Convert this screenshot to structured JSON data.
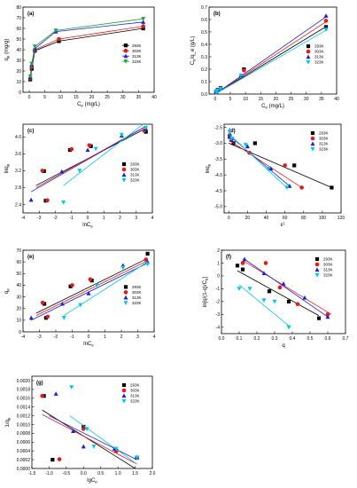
{
  "chart_data": [
    {
      "id": "a",
      "type": "line",
      "panel_label": "(a)",
      "xlabel": "C_e (mg/L)",
      "ylabel": "q_e (mg/g)",
      "xlim": [
        -2,
        40
      ],
      "ylim": [
        0,
        80
      ],
      "xticks": [
        0,
        5,
        10,
        15,
        20,
        25,
        30,
        35,
        40
      ],
      "yticks": [
        0,
        10,
        20,
        30,
        40,
        50,
        60,
        70,
        80
      ],
      "legend_position": "center-right",
      "series": [
        {
          "name": "293K",
          "color": "#000000",
          "marker": "square",
          "x": [
            0.3,
            0.8,
            1.8,
            9.5,
            36.5
          ],
          "y": [
            12,
            22,
            39,
            48,
            60
          ]
        },
        {
          "name": "303K",
          "color": "#e41a1c",
          "marker": "circle",
          "x": [
            0.3,
            0.8,
            1.8,
            9.5,
            36.5
          ],
          "y": [
            13,
            24,
            40,
            50,
            62
          ]
        },
        {
          "name": "313K",
          "color": "#1f1fd6",
          "marker": "triangle",
          "x": [
            0.3,
            0.8,
            1.8,
            8.5,
            36.5
          ],
          "y": [
            14,
            26,
            41,
            57,
            66
          ]
        },
        {
          "name": "323K",
          "color": "#1fa33a",
          "marker": "triangle-down",
          "x": [
            0.3,
            0.8,
            1.8,
            8.5,
            36.5
          ],
          "y": [
            15,
            27,
            43,
            58,
            69
          ]
        }
      ]
    },
    {
      "id": "b",
      "type": "scatter",
      "panel_label": "(b)",
      "xlabel": "C_e (mg/L)",
      "ylabel": "C_e/q_e (g/L)",
      "xlim": [
        -2,
        40
      ],
      "ylim": [
        0,
        0.7
      ],
      "xticks": [
        0,
        5,
        10,
        15,
        20,
        25,
        30,
        35,
        40
      ],
      "yticks": [
        0.0,
        0.1,
        0.2,
        0.3,
        0.4,
        0.5,
        0.6,
        0.7
      ],
      "legend_position": "center-right",
      "series": [
        {
          "name": "293K",
          "color": "#000000",
          "marker": "square",
          "x": [
            0.3,
            0.8,
            1.8,
            9.5,
            36.5
          ],
          "y": [
            0.02,
            0.035,
            0.05,
            0.2,
            0.54
          ],
          "fit": [
            [
              0,
              0.0
            ],
            [
              37,
              0.55
            ]
          ]
        },
        {
          "name": "303K",
          "color": "#e41a1c",
          "marker": "circle",
          "x": [
            0.3,
            0.8,
            1.8,
            9.5,
            36.5
          ],
          "y": [
            0.02,
            0.033,
            0.048,
            0.19,
            0.59
          ],
          "fit": [
            [
              0,
              0.0
            ],
            [
              37,
              0.59
            ]
          ]
        },
        {
          "name": "313K",
          "color": "#1f1fd6",
          "marker": "triangle",
          "x": [
            0.3,
            0.8,
            1.8,
            8.5,
            36.5
          ],
          "y": [
            0.02,
            0.031,
            0.045,
            0.15,
            0.63
          ],
          "fit": [
            [
              0,
              0.0
            ],
            [
              37,
              0.63
            ]
          ]
        },
        {
          "name": "323K",
          "color": "#00c8e6",
          "marker": "triangle-down",
          "x": [
            0.3,
            0.8,
            1.8,
            8.5,
            36.5
          ],
          "y": [
            0.018,
            0.03,
            0.043,
            0.15,
            0.52
          ],
          "fit": [
            [
              0,
              0.0
            ],
            [
              37,
              0.52
            ]
          ]
        }
      ]
    },
    {
      "id": "c",
      "type": "scatter",
      "panel_label": "(c)",
      "xlabel": "lnC_e",
      "ylabel": "lnq_e",
      "xlim": [
        -4,
        4
      ],
      "ylim": [
        2.2,
        4.3
      ],
      "xticks": [
        -4,
        -3,
        -2,
        -1,
        0,
        1,
        2,
        3,
        4
      ],
      "yticks": [
        2.4,
        2.8,
        3.2,
        3.6,
        4.0
      ],
      "legend_position": "center-right",
      "series": [
        {
          "name": "293K",
          "color": "#000000",
          "marker": "square",
          "x": [
            -2.7,
            -2.6,
            -1.1,
            0.2,
            3.6
          ],
          "y": [
            3.19,
            2.49,
            3.69,
            3.78,
            4.12
          ],
          "fit": [
            [
              -3.2,
              2.85
            ],
            [
              3.6,
              4.2
            ]
          ]
        },
        {
          "name": "303K",
          "color": "#e41a1c",
          "marker": "circle",
          "x": [
            -2.8,
            -2.5,
            -1.0,
            0.1,
            3.5
          ],
          "y": [
            3.2,
            2.5,
            3.71,
            3.8,
            4.15
          ],
          "fit": [
            [
              -3.2,
              2.8
            ],
            [
              3.6,
              4.25
            ]
          ]
        },
        {
          "name": "313K",
          "color": "#1f1fd6",
          "marker": "triangle",
          "x": [
            -3.5,
            -1.6,
            0.0,
            2.1,
            3.6
          ],
          "y": [
            2.51,
            3.18,
            3.69,
            4.03,
            4.19
          ],
          "fit": [
            [
              -3.5,
              2.7
            ],
            [
              3.6,
              4.25
            ]
          ]
        },
        {
          "name": "323K",
          "color": "#00c8e6",
          "marker": "triangle-down",
          "x": [
            -1.5,
            -0.5,
            0.5,
            2.1,
            3.6
          ],
          "y": [
            2.45,
            3.2,
            3.72,
            4.05,
            4.22
          ],
          "fit": [
            [
              -1.5,
              2.85
            ],
            [
              3.6,
              4.35
            ]
          ]
        }
      ]
    },
    {
      "id": "d",
      "type": "scatter",
      "panel_label": "(d)",
      "xlabel": "ε²",
      "ylabel": "lnq_e",
      "xlim": [
        -5,
        120
      ],
      "ylim": [
        -5.2,
        -2.4
      ],
      "xticks": [
        0,
        20,
        40,
        60,
        80,
        100,
        120
      ],
      "yticks": [
        -5.0,
        -4.5,
        -4.0,
        -3.5,
        -3.0,
        -2.5
      ],
      "legend_position": "top-right",
      "series": [
        {
          "name": "293K",
          "color": "#000000",
          "marker": "square",
          "x": [
            1,
            5,
            28,
            70,
            110
          ],
          "y": [
            -2.8,
            -3.0,
            -3.0,
            -3.7,
            -4.4
          ],
          "fit": [
            [
              0,
              -3.0
            ],
            [
              110,
              -4.4
            ]
          ]
        },
        {
          "name": "303K",
          "color": "#e41a1c",
          "marker": "circle",
          "x": [
            1,
            3,
            22,
            60,
            78
          ],
          "y": [
            -2.75,
            -2.85,
            -3.3,
            -3.7,
            -4.4
          ],
          "fit": [
            [
              0,
              -2.9
            ],
            [
              78,
              -4.4
            ]
          ]
        },
        {
          "name": "313K",
          "color": "#1f1fd6",
          "marker": "triangle",
          "x": [
            1,
            3,
            20,
            45,
            65
          ],
          "y": [
            -2.7,
            -2.9,
            -3.1,
            -3.8,
            -4.35
          ],
          "fit": [
            [
              0,
              -2.75
            ],
            [
              65,
              -4.35
            ]
          ]
        },
        {
          "name": "323K",
          "color": "#00c8e6",
          "marker": "triangle-down",
          "x": [
            1,
            3,
            18,
            42,
            62
          ],
          "y": [
            -2.65,
            -2.85,
            -3.05,
            -3.8,
            -4.4
          ],
          "fit": [
            [
              0,
              -2.7
            ],
            [
              62,
              -4.4
            ]
          ]
        }
      ]
    },
    {
      "id": "e",
      "type": "scatter",
      "panel_label": "(e)",
      "xlabel": "lnC_e",
      "ylabel": "q_e",
      "xlim": [
        -4,
        4
      ],
      "ylim": [
        0,
        70
      ],
      "xticks": [
        -4,
        -3,
        -2,
        -1,
        0,
        1,
        2,
        3,
        4
      ],
      "yticks": [
        0,
        10,
        20,
        30,
        40,
        50,
        60,
        70
      ],
      "legend_position": "center-right",
      "series": [
        {
          "name": "293K",
          "color": "#000000",
          "marker": "square",
          "x": [
            -2.7,
            -2.6,
            -1.1,
            0.2,
            3.6
          ],
          "y": [
            24,
            12,
            39,
            44,
            67
          ],
          "fit": [
            [
              -3.2,
              16
            ],
            [
              3.6,
              63
            ]
          ]
        },
        {
          "name": "303K",
          "color": "#e41a1c",
          "marker": "circle",
          "x": [
            -2.8,
            -2.5,
            -1.0,
            0.1,
            3.5
          ],
          "y": [
            25,
            13,
            40,
            45,
            62
          ],
          "fit": [
            [
              -3.2,
              14
            ],
            [
              3.6,
              61
            ]
          ]
        },
        {
          "name": "313K",
          "color": "#1f1fd6",
          "marker": "triangle",
          "x": [
            -3.5,
            -1.6,
            0.0,
            2.1,
            3.6
          ],
          "y": [
            12,
            24,
            33,
            57,
            60
          ],
          "fit": [
            [
              -3.5,
              10
            ],
            [
              3.6,
              59
            ]
          ]
        },
        {
          "name": "323K",
          "color": "#00c8e6",
          "marker": "triangle-down",
          "x": [
            -1.5,
            -0.5,
            0.5,
            2.1,
            3.6
          ],
          "y": [
            12,
            23,
            40,
            55,
            58
          ],
          "fit": [
            [
              -1.5,
              14
            ],
            [
              3.6,
              60
            ]
          ]
        }
      ]
    },
    {
      "id": "f",
      "type": "scatter",
      "panel_label": "(f)",
      "xlabel": "q",
      "ylabel": "ln[q/(1-q)/C_e]",
      "xlim": [
        0,
        0.7
      ],
      "ylim": [
        -4.5,
        2
      ],
      "xticks": [
        0.0,
        0.1,
        0.2,
        0.3,
        0.4,
        0.5,
        0.6,
        0.7
      ],
      "yticks": [
        -4,
        -3,
        -2,
        -1,
        0,
        1,
        2
      ],
      "legend_position": "top-right",
      "series": [
        {
          "name": "293K",
          "color": "#000000",
          "marker": "square",
          "x": [
            0.09,
            0.12,
            0.27,
            0.38,
            0.55
          ],
          "y": [
            0.8,
            0.5,
            -1.2,
            -2.0,
            -3.3
          ],
          "fit": [
            [
              0.09,
              0.4
            ],
            [
              0.55,
              -3.1
            ]
          ]
        },
        {
          "name": "303K",
          "color": "#e41a1c",
          "marker": "circle",
          "x": [
            0.12,
            0.25,
            0.33,
            0.43,
            0.6
          ],
          "y": [
            1.0,
            1.0,
            -0.9,
            -2.2,
            -3.0
          ],
          "fit": [
            [
              0.12,
              1.2
            ],
            [
              0.62,
              -3.0
            ]
          ]
        },
        {
          "name": "313K",
          "color": "#1f1fd6",
          "marker": "triangle",
          "x": [
            0.13,
            0.24,
            0.35,
            0.47,
            0.6
          ],
          "y": [
            1.3,
            0.2,
            -0.6,
            -1.7,
            -3.2
          ],
          "fit": [
            [
              0.13,
              1.3
            ],
            [
              0.6,
              -3.2
            ]
          ]
        },
        {
          "name": "323K",
          "color": "#00c8e6",
          "marker": "triangle-down",
          "x": [
            0.1,
            0.16,
            0.24,
            0.3,
            0.38
          ],
          "y": [
            -1.0,
            -1.0,
            -1.9,
            -2.0,
            -4.0
          ],
          "fit": [
            [
              0.1,
              -0.7
            ],
            [
              0.39,
              -4.0
            ]
          ]
        }
      ]
    },
    {
      "id": "g",
      "type": "scatter",
      "panel_label": "(g)",
      "xlabel": "lgC_e",
      "ylabel": "1/q_e",
      "xlim": [
        -1.5,
        2.0
      ],
      "ylim": [
        0,
        0.0021
      ],
      "xticks": [
        -1.5,
        -1.0,
        -0.5,
        0.0,
        0.5,
        1.0,
        1.5,
        2.0
      ],
      "yticks": [
        0.0,
        0.0002,
        0.0004,
        0.0006,
        0.0008,
        0.001,
        0.0012,
        0.0014,
        0.0016,
        0.0018,
        0.002
      ],
      "legend_position": "top-right",
      "series": [
        {
          "name": "293K",
          "color": "#000000",
          "marker": "square",
          "x": [
            -1.15,
            -0.9,
            0.0,
            0.95,
            1.55
          ],
          "y": [
            0.00165,
            0.0002,
            0.00095,
            0.0004,
            0.00025
          ],
          "fit": [
            [
              -1.2,
              0.00133
            ],
            [
              1.5,
              0.0
            ]
          ]
        },
        {
          "name": "303K",
          "color": "#e41a1c",
          "marker": "circle",
          "x": [
            -1.2,
            -0.7,
            0.0,
            0.95,
            1.55
          ],
          "y": [
            0.00165,
            0.00021,
            0.0009,
            0.0004,
            0.00025
          ],
          "fit": [
            [
              -1.2,
              0.00123
            ],
            [
              1.55,
              0.0001
            ]
          ]
        },
        {
          "name": "313K",
          "color": "#1f1fd6",
          "marker": "triangle",
          "x": [
            -0.8,
            -0.3,
            0.0,
            0.9,
            1.55
          ],
          "y": [
            0.0017,
            0.00085,
            0.0005,
            0.00045,
            0.00025
          ],
          "fit": [
            [
              -1.0,
              0.0012
            ],
            [
              1.55,
              0.0002
            ]
          ]
        },
        {
          "name": "323K",
          "color": "#00c8e6",
          "marker": "triangle-down",
          "x": [
            -0.35,
            0.1,
            0.3,
            0.95,
            1.55
          ],
          "y": [
            0.00185,
            0.0009,
            0.0005,
            0.00045,
            0.00025
          ],
          "fit": [
            [
              -0.4,
              0.0012
            ],
            [
              1.55,
              0.0001
            ]
          ]
        }
      ]
    }
  ]
}
